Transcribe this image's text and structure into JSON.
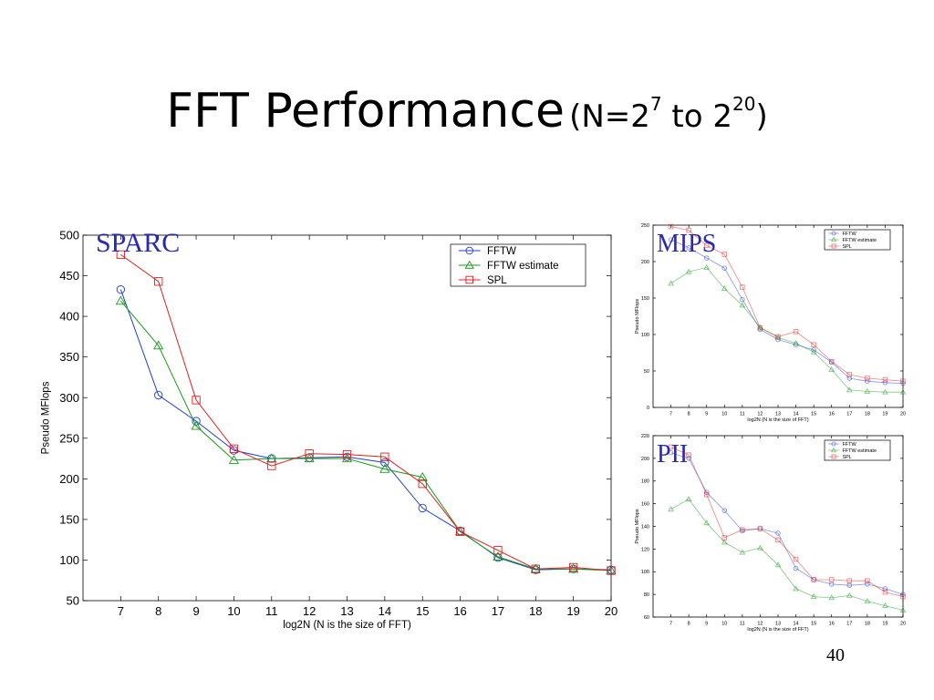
{
  "slide": {
    "title_main": "FFT Performance",
    "title_sub_prefix": "(N=2",
    "title_sub_exp1": "7",
    "title_sub_mid": " to 2",
    "title_sub_exp2": "20",
    "title_sub_suffix": ")",
    "page_number": "40"
  },
  "chart_data": [
    {
      "id": "sparc",
      "type": "line",
      "panel_label": "SPARC",
      "xlabel": "log2N (N is the size of FFT)",
      "ylabel": "Pseudo MFlops",
      "x": [
        7,
        8,
        9,
        10,
        11,
        12,
        13,
        14,
        15,
        16,
        17,
        18,
        19,
        20
      ],
      "xlim": [
        6,
        20
      ],
      "ylim": [
        50,
        500
      ],
      "yticks": [
        50,
        100,
        150,
        200,
        250,
        300,
        350,
        400,
        450,
        500
      ],
      "xticks": [
        7,
        8,
        9,
        10,
        11,
        12,
        13,
        14,
        15,
        16,
        17,
        18,
        19,
        20
      ],
      "grid": false,
      "legend_position": "top-right",
      "series": [
        {
          "name": "FFTW",
          "color": "#1f3fd0",
          "marker": "circle",
          "values": [
            433,
            303,
            271,
            235,
            225,
            226,
            227,
            220,
            164,
            136,
            103,
            88,
            89,
            88
          ]
        },
        {
          "name": "FFTW estimate",
          "color": "#1a9a1a",
          "marker": "triangle",
          "values": [
            419,
            364,
            265,
            223,
            225,
            225,
            225,
            212,
            202,
            135,
            104,
            89,
            89,
            87
          ]
        },
        {
          "name": "SPL",
          "color": "#e02020",
          "marker": "square",
          "values": [
            476,
            443,
            297,
            237,
            216,
            231,
            230,
            227,
            194,
            135,
            112,
            89,
            91,
            87
          ]
        }
      ]
    },
    {
      "id": "mips",
      "type": "line",
      "panel_label": "MIPS",
      "xlabel": "log2N (N is the size of FFT)",
      "ylabel": "Pseudo MFlops",
      "x": [
        7,
        8,
        9,
        10,
        11,
        12,
        13,
        14,
        15,
        16,
        17,
        18,
        19,
        20
      ],
      "xlim": [
        6,
        20
      ],
      "ylim": [
        0,
        250
      ],
      "yticks": [
        0,
        50,
        100,
        150,
        200,
        250
      ],
      "xticks": [
        7,
        8,
        9,
        10,
        11,
        12,
        13,
        14,
        15,
        16,
        17,
        18,
        19,
        20
      ],
      "grid": false,
      "legend_position": "top-right",
      "series": [
        {
          "name": "FFTW",
          "color": "#1f3fd0",
          "marker": "circle",
          "values": [
            230,
            219,
            205,
            191,
            148,
            107,
            93,
            86,
            79,
            62,
            40,
            36,
            34,
            33
          ]
        },
        {
          "name": "FFTW estimate",
          "color": "#1a9a1a",
          "marker": "triangle",
          "values": [
            170,
            186,
            192,
            163,
            140,
            110,
            96,
            88,
            76,
            52,
            24,
            22,
            21,
            21
          ]
        },
        {
          "name": "SPL",
          "color": "#e02020",
          "marker": "square",
          "values": [
            248,
            243,
            222,
            210,
            165,
            109,
            97,
            104,
            86,
            63,
            45,
            40,
            38,
            36
          ]
        }
      ]
    },
    {
      "id": "pii",
      "type": "line",
      "panel_label": "PII",
      "xlabel": "log2N (N is the size of FFT)",
      "ylabel": "Pseudo MFlops",
      "x": [
        7,
        8,
        9,
        10,
        11,
        12,
        13,
        14,
        15,
        16,
        17,
        18,
        19,
        20
      ],
      "xlim": [
        6,
        20
      ],
      "ylim": [
        60,
        220
      ],
      "yticks": [
        60,
        80,
        100,
        120,
        140,
        160,
        180,
        200,
        220
      ],
      "xticks": [
        7,
        8,
        9,
        10,
        11,
        12,
        13,
        14,
        15,
        16,
        17,
        18,
        19,
        20
      ],
      "grid": false,
      "legend_position": "top-right",
      "series": [
        {
          "name": "FFTW",
          "color": "#1f3fd0",
          "marker": "circle",
          "values": [
            205,
            200,
            170,
            154,
            136,
            138,
            134,
            103,
            93,
            89,
            88,
            89,
            85,
            80
          ]
        },
        {
          "name": "FFTW estimate",
          "color": "#1a9a1a",
          "marker": "triangle",
          "values": [
            155,
            164,
            143,
            126,
            117,
            121,
            106,
            85,
            78,
            77,
            79,
            74,
            70,
            66
          ]
        },
        {
          "name": "SPL",
          "color": "#e02020",
          "marker": "square",
          "values": [
            210,
            203,
            168,
            130,
            137,
            138,
            128,
            111,
            93,
            93,
            92,
            92,
            82,
            78
          ]
        }
      ]
    }
  ]
}
